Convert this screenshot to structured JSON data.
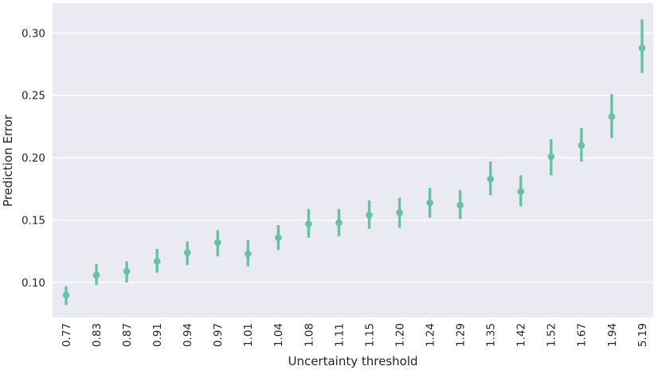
{
  "figure": {
    "background_color": "#ffffff",
    "plot_background_color": "#eaeaf2",
    "grid_color": "#ffffff",
    "marker_color": "#66c2a5",
    "text_color": "#262626"
  },
  "chart_data": {
    "type": "scatter",
    "variant": "point-plot-with-error-bars",
    "title": "",
    "xlabel": "Uncertainty threshold",
    "ylabel": "Prediction Error",
    "grid": true,
    "legend": false,
    "x_tick_rotation_deg": 90,
    "ylim": [
      0.072,
      0.324
    ],
    "yticks": [
      0.1,
      0.15,
      0.2,
      0.25,
      0.3
    ],
    "categories": [
      "0.77",
      "0.83",
      "0.87",
      "0.91",
      "0.94",
      "0.97",
      "1.01",
      "1.04",
      "1.08",
      "1.11",
      "1.15",
      "1.20",
      "1.24",
      "1.29",
      "1.35",
      "1.42",
      "1.52",
      "1.67",
      "1.94",
      "5.19"
    ],
    "series": [
      {
        "name": "Prediction Error",
        "values": [
          0.09,
          0.106,
          0.109,
          0.117,
          0.124,
          0.132,
          0.123,
          0.136,
          0.147,
          0.148,
          0.154,
          0.156,
          0.164,
          0.162,
          0.183,
          0.173,
          0.201,
          0.21,
          0.233,
          0.288
        ],
        "err_low": [
          0.082,
          0.098,
          0.1,
          0.108,
          0.114,
          0.121,
          0.113,
          0.126,
          0.136,
          0.137,
          0.143,
          0.144,
          0.152,
          0.151,
          0.17,
          0.161,
          0.186,
          0.197,
          0.216,
          0.268
        ],
        "err_high": [
          0.097,
          0.115,
          0.117,
          0.127,
          0.133,
          0.142,
          0.134,
          0.146,
          0.159,
          0.159,
          0.166,
          0.168,
          0.176,
          0.174,
          0.197,
          0.186,
          0.215,
          0.224,
          0.251,
          0.311
        ]
      }
    ]
  }
}
